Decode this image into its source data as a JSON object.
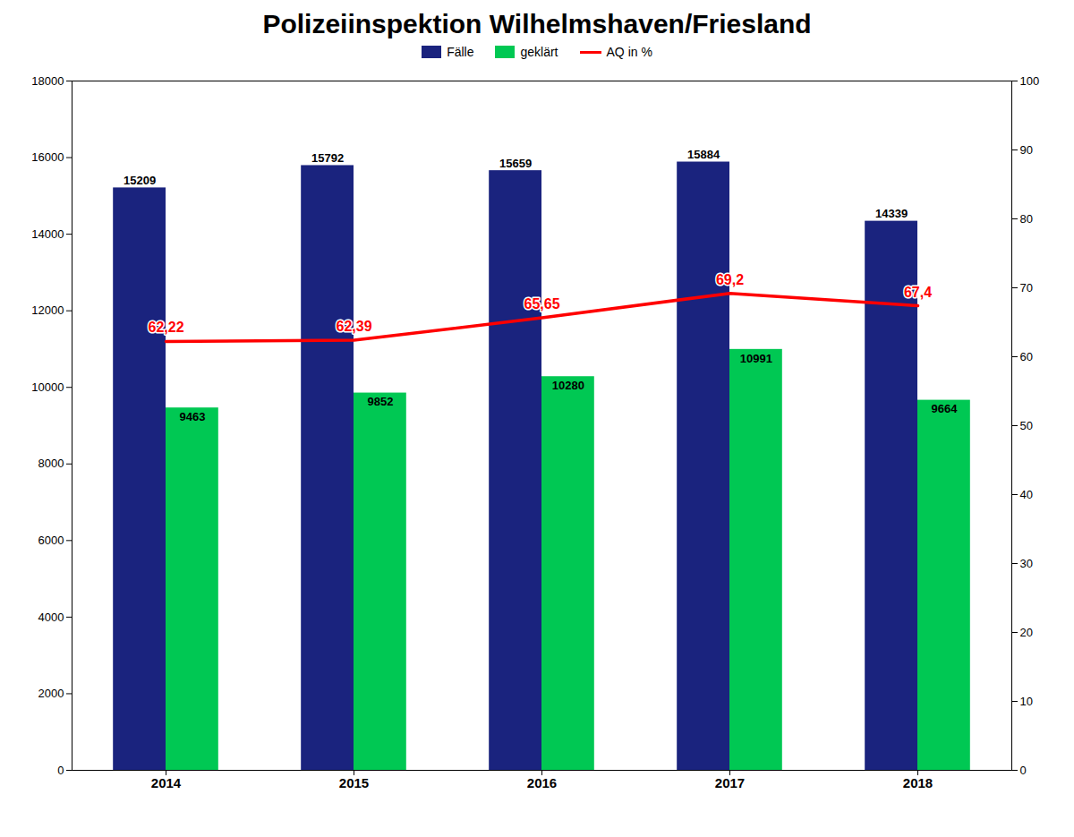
{
  "chart_data": {
    "type": "bar",
    "title": "Polizeiinspektion Wilhelmshaven/Friesland",
    "categories": [
      "2014",
      "2015",
      "2016",
      "2017",
      "2018"
    ],
    "series": [
      {
        "name": "Fälle",
        "type": "bar",
        "color": "#1a237e",
        "values": [
          15209,
          15792,
          15659,
          15884,
          14339
        ]
      },
      {
        "name": "geklärt",
        "type": "bar",
        "color": "#00c853",
        "values": [
          9463,
          9852,
          10280,
          10991,
          9664
        ]
      },
      {
        "name": "AQ in %",
        "type": "line",
        "axis": "y2",
        "color": "#ff0000",
        "values": [
          62.22,
          62.39,
          65.65,
          69.2,
          67.4
        ],
        "value_labels": [
          "62,22",
          "62,39",
          "65,65",
          "69,2",
          "67,4"
        ]
      }
    ],
    "ylim": [
      0,
      18000
    ],
    "yticks": [
      0,
      2000,
      4000,
      6000,
      8000,
      10000,
      12000,
      14000,
      16000,
      18000
    ],
    "y2lim": [
      0,
      100
    ],
    "y2ticks": [
      0,
      10,
      20,
      30,
      40,
      50,
      60,
      70,
      80,
      90,
      100
    ],
    "grid": false,
    "legend": "upper center",
    "data_labels": true
  }
}
